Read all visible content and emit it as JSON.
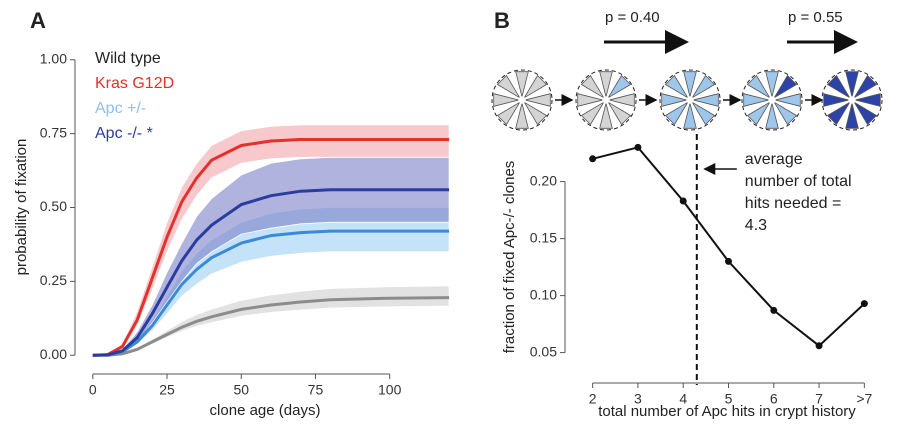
{
  "chart_data": [
    {
      "type": "line",
      "panel_label": "A",
      "xlabel": "clone age (days)",
      "ylabel": "probability of fixation",
      "x": [
        0,
        5,
        10,
        15,
        20,
        25,
        30,
        35,
        40,
        50,
        60,
        70,
        80,
        100,
        120
      ],
      "xlim": [
        -6,
        122
      ],
      "xticks": [
        0,
        25,
        50,
        75,
        100
      ],
      "ylim": [
        -0.05,
        1.05
      ],
      "yticks": [
        {
          "value": 0,
          "label": "0.00"
        },
        {
          "value": 0.25,
          "label": "0.25"
        },
        {
          "value": 0.5,
          "label": "0.50"
        },
        {
          "value": 0.75,
          "label": "0.75"
        },
        {
          "value": 1,
          "label": "1.00"
        }
      ],
      "series": [
        {
          "name": "Wild type",
          "color": "#8c8c8c",
          "legend_color": "#222222",
          "band_color": "#cfcfcf",
          "values": [
            0,
            0,
            0.005,
            0.02,
            0.045,
            0.07,
            0.095,
            0.115,
            0.13,
            0.155,
            0.17,
            0.18,
            0.188,
            0.193,
            0.195
          ],
          "lower": [
            0,
            0,
            0.004,
            0.017,
            0.038,
            0.06,
            0.081,
            0.098,
            0.11,
            0.132,
            0.145,
            0.153,
            0.16,
            0.164,
            0.166
          ],
          "upper": [
            0,
            0,
            0.006,
            0.024,
            0.054,
            0.084,
            0.114,
            0.138,
            0.156,
            0.186,
            0.204,
            0.216,
            0.226,
            0.232,
            0.235
          ]
        },
        {
          "name": "Kras G12D",
          "color": "#e3312d",
          "legend_color": "#e3312d",
          "band_color": "#f2a3aa",
          "values": [
            0,
            0.002,
            0.03,
            0.12,
            0.26,
            0.4,
            0.52,
            0.6,
            0.66,
            0.71,
            0.725,
            0.73,
            0.73,
            0.73,
            0.73
          ],
          "lower": [
            0,
            0.001,
            0.02,
            0.1,
            0.22,
            0.35,
            0.46,
            0.54,
            0.6,
            0.65,
            0.665,
            0.67,
            0.67,
            0.67,
            0.67
          ],
          "upper": [
            0,
            0.003,
            0.04,
            0.15,
            0.3,
            0.45,
            0.57,
            0.65,
            0.71,
            0.76,
            0.775,
            0.78,
            0.78,
            0.78,
            0.78
          ]
        },
        {
          "name": "Apc +/-",
          "color": "#3b8ad6",
          "legend_color": "#8fbfea",
          "band_color": "#9fd0f3",
          "values": [
            0,
            0.001,
            0.012,
            0.045,
            0.1,
            0.17,
            0.24,
            0.29,
            0.33,
            0.38,
            0.405,
            0.415,
            0.42,
            0.42,
            0.42
          ],
          "lower": [
            0,
            0.001,
            0.01,
            0.037,
            0.083,
            0.14,
            0.2,
            0.24,
            0.275,
            0.315,
            0.335,
            0.345,
            0.35,
            0.35,
            0.35
          ],
          "upper": [
            0,
            0.002,
            0.015,
            0.055,
            0.12,
            0.2,
            0.285,
            0.345,
            0.39,
            0.45,
            0.48,
            0.495,
            0.5,
            0.5,
            0.5
          ]
        },
        {
          "name": "Apc -/- *",
          "color": "#2a3d9e",
          "legend_color": "#2a3d9e",
          "band_color": "#7a80c6",
          "values": [
            0,
            0.001,
            0.015,
            0.06,
            0.14,
            0.23,
            0.32,
            0.39,
            0.44,
            0.51,
            0.54,
            0.555,
            0.56,
            0.56,
            0.56
          ],
          "lower": [
            0,
            0.001,
            0.01,
            0.045,
            0.11,
            0.18,
            0.25,
            0.31,
            0.35,
            0.41,
            0.43,
            0.445,
            0.45,
            0.45,
            0.45
          ],
          "upper": [
            0,
            0.002,
            0.02,
            0.08,
            0.17,
            0.28,
            0.38,
            0.47,
            0.53,
            0.61,
            0.65,
            0.665,
            0.67,
            0.67,
            0.67
          ]
        }
      ]
    },
    {
      "type": "line",
      "panel_label": "B",
      "xlabel": "total number of Apc hits in crypt history",
      "ylabel": "fraction of fixed Apc-/- clones",
      "x": [
        2,
        3,
        4,
        5,
        6,
        7,
        8
      ],
      "xlim": [
        1.5,
        8.5
      ],
      "xticks": [
        2,
        3,
        4,
        5,
        6,
        7,
        {
          "value": 8,
          "label": ">7"
        }
      ],
      "ylim": [
        0.04,
        0.24
      ],
      "yticks": [
        0.05,
        {
          "value": 0.1,
          "label": "0.10"
        },
        0.15,
        {
          "value": 0.2,
          "label": "0.20"
        }
      ],
      "color": "#111111",
      "values": [
        0.22,
        0.23,
        0.183,
        0.13,
        0.087,
        0.056,
        0.093
      ],
      "vline": {
        "value": 4.3
      },
      "annotation": [
        "average",
        "number of total",
        "hits needed ="
      ],
      "transitions": [
        "p = 0.40",
        "p = 0.55"
      ]
    }
  ]
}
